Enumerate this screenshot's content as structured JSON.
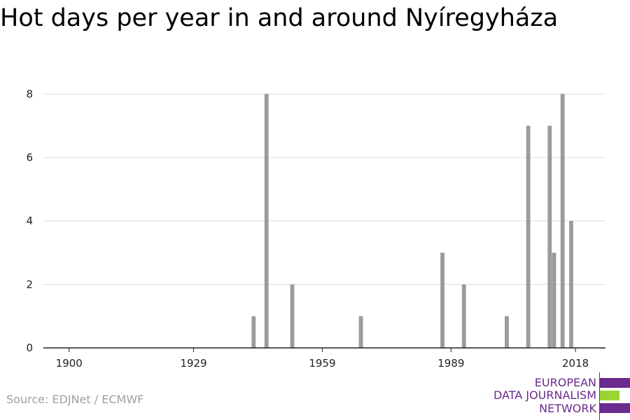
{
  "title": "Hot days per year in and around Nyíregyháza",
  "source": "Source: EDJNet / ECMWF",
  "logo": {
    "lines": [
      "EUROPEAN",
      "DATA JOURNALISM",
      "NETWORK"
    ],
    "text_color": "#6a2a8e",
    "colors": [
      "#6a2a8e",
      "#9ad633",
      "#6a2a8e"
    ]
  },
  "colors": {
    "bar": "#9b9b9b",
    "grid": "#dddddd",
    "axis": "#222222"
  },
  "chart_data": {
    "type": "bar",
    "title": "Hot days per year in and around Nyíregyháza",
    "xlabel": "",
    "ylabel": "",
    "xlim": [
      1894,
      2025
    ],
    "ylim": [
      0,
      8.8
    ],
    "x_ticks": [
      1900,
      1929,
      1959,
      1989,
      2018
    ],
    "y_ticks": [
      0,
      2,
      4,
      6,
      8
    ],
    "grid": true,
    "x": [
      1943,
      1946,
      1952,
      1968,
      1987,
      1992,
      2002,
      2007,
      2012,
      2013,
      2015,
      2017
    ],
    "values": [
      1,
      8,
      2,
      1,
      3,
      2,
      1,
      7,
      7,
      3,
      8,
      4
    ]
  }
}
